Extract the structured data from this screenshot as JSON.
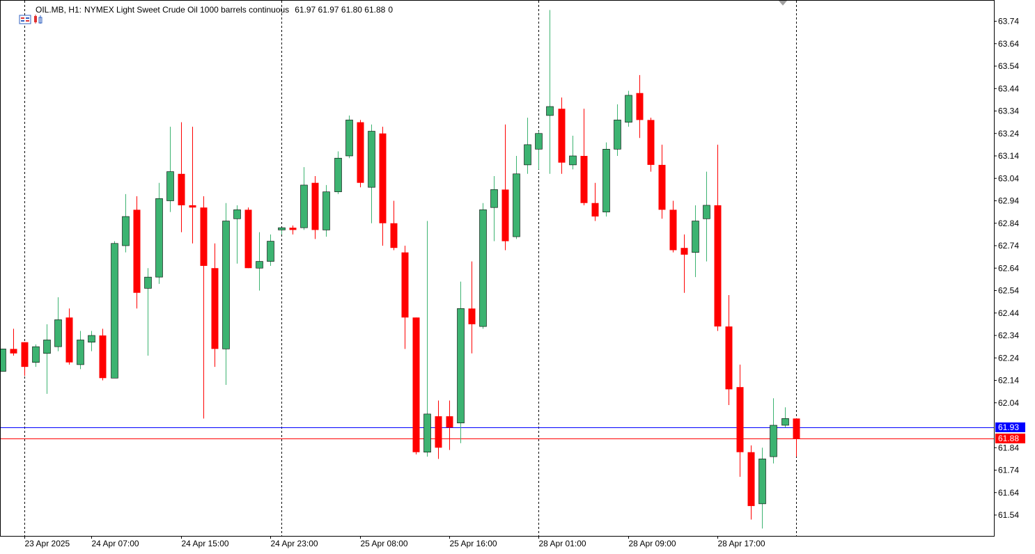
{
  "header": {
    "symbol": "OIL.MB, H1:",
    "description": "NYMEX Light Sweet Crude Oil 1000 barrels continuous",
    "ohlc": "61.97 61.97 61.80 61.88",
    "volume": "0"
  },
  "colors": {
    "bull": "#3cb371",
    "bear": "#ff0000",
    "bid_line": "#0000ff",
    "ask_line": "#ff0000",
    "grid_sep": "#000000",
    "axis": "#000000"
  },
  "price_labels": {
    "bid": "61.93",
    "last": "61.88"
  },
  "chart_data": {
    "type": "candlestick",
    "title": "OIL.MB, H1: NYMEX Light Sweet Crude Oil 1000 barrels continuous",
    "ylim": [
      61.44,
      63.8
    ],
    "y_ticks": [
      "63.74",
      "63.64",
      "63.54",
      "63.44",
      "63.34",
      "63.24",
      "63.14",
      "63.04",
      "62.94",
      "62.84",
      "62.74",
      "62.64",
      "62.54",
      "62.44",
      "62.34",
      "62.24",
      "62.14",
      "62.04",
      "61.84",
      "61.74",
      "61.64",
      "61.54"
    ],
    "x_labels": [
      "23 Apr 2025",
      "24 Apr 07:00",
      "24 Apr 15:00",
      "24 Apr 23:00",
      "25 Apr 08:00",
      "25 Apr 16:00",
      "28 Apr 01:00",
      "28 Apr 09:00",
      "28 Apr 17:00"
    ],
    "x_label_bars": [
      2,
      8,
      16,
      24,
      32,
      40,
      48,
      56,
      64
    ],
    "session_separators": [
      2,
      25,
      48,
      71
    ],
    "horizontal_lines": [
      61.93,
      61.88
    ],
    "candles": [
      {
        "o": 62.18,
        "h": 62.28,
        "l": 62.18,
        "c": 62.28
      },
      {
        "o": 62.28,
        "h": 62.37,
        "l": 62.25,
        "c": 62.26
      },
      {
        "o": 62.31,
        "h": 62.31,
        "l": 62.16,
        "c": 62.2
      },
      {
        "o": 62.22,
        "h": 62.3,
        "l": 62.2,
        "c": 62.29
      },
      {
        "o": 62.26,
        "h": 62.39,
        "l": 62.08,
        "c": 62.32
      },
      {
        "o": 62.29,
        "h": 62.51,
        "l": 62.27,
        "c": 62.41
      },
      {
        "o": 62.42,
        "h": 62.46,
        "l": 62.21,
        "c": 62.22
      },
      {
        "o": 62.21,
        "h": 62.36,
        "l": 62.19,
        "c": 62.32
      },
      {
        "o": 62.31,
        "h": 62.36,
        "l": 62.27,
        "c": 62.34
      },
      {
        "o": 62.34,
        "h": 62.37,
        "l": 62.14,
        "c": 62.15
      },
      {
        "o": 62.15,
        "h": 62.76,
        "l": 62.15,
        "c": 62.75
      },
      {
        "o": 62.74,
        "h": 62.97,
        "l": 62.71,
        "c": 62.87
      },
      {
        "o": 62.9,
        "h": 62.96,
        "l": 62.46,
        "c": 62.53
      },
      {
        "o": 62.55,
        "h": 62.64,
        "l": 62.25,
        "c": 62.6
      },
      {
        "o": 62.6,
        "h": 63.02,
        "l": 62.57,
        "c": 62.95
      },
      {
        "o": 62.94,
        "h": 63.27,
        "l": 62.89,
        "c": 63.07
      },
      {
        "o": 63.06,
        "h": 63.29,
        "l": 62.8,
        "c": 62.92
      },
      {
        "o": 62.92,
        "h": 63.27,
        "l": 62.75,
        "c": 62.91
      },
      {
        "o": 62.91,
        "h": 62.96,
        "l": 61.97,
        "c": 62.65
      },
      {
        "o": 62.64,
        "h": 62.75,
        "l": 62.2,
        "c": 62.28
      },
      {
        "o": 62.28,
        "h": 62.93,
        "l": 62.12,
        "c": 62.85
      },
      {
        "o": 62.86,
        "h": 62.92,
        "l": 62.66,
        "c": 62.9
      },
      {
        "o": 62.9,
        "h": 62.91,
        "l": 62.64,
        "c": 62.64
      },
      {
        "o": 62.64,
        "h": 62.8,
        "l": 62.54,
        "c": 62.67
      },
      {
        "o": 62.67,
        "h": 62.79,
        "l": 62.65,
        "c": 62.76
      },
      {
        "o": 62.81,
        "h": 62.81,
        "l": 62.79,
        "c": 62.82
      },
      {
        "o": 62.82,
        "h": 62.83,
        "l": 62.79,
        "c": 62.81
      },
      {
        "o": 62.82,
        "h": 63.09,
        "l": 62.81,
        "c": 63.01
      },
      {
        "o": 63.02,
        "h": 63.05,
        "l": 62.77,
        "c": 62.81
      },
      {
        "o": 62.81,
        "h": 63.01,
        "l": 62.78,
        "c": 62.98
      },
      {
        "o": 62.98,
        "h": 63.16,
        "l": 62.97,
        "c": 63.13
      },
      {
        "o": 63.14,
        "h": 63.32,
        "l": 63.13,
        "c": 63.3
      },
      {
        "o": 63.29,
        "h": 63.3,
        "l": 63.0,
        "c": 63.02
      },
      {
        "o": 63.0,
        "h": 63.28,
        "l": 62.84,
        "c": 63.25
      },
      {
        "o": 63.24,
        "h": 63.27,
        "l": 62.74,
        "c": 62.84
      },
      {
        "o": 62.84,
        "h": 62.94,
        "l": 62.72,
        "c": 62.73
      },
      {
        "o": 62.71,
        "h": 62.74,
        "l": 62.28,
        "c": 62.42
      },
      {
        "o": 62.42,
        "h": 62.42,
        "l": 61.81,
        "c": 61.82
      },
      {
        "o": 61.82,
        "h": 62.85,
        "l": 61.8,
        "c": 61.99
      },
      {
        "o": 61.98,
        "h": 62.05,
        "l": 61.79,
        "c": 61.84
      },
      {
        "o": 61.98,
        "h": 62.05,
        "l": 61.83,
        "c": 61.93
      },
      {
        "o": 61.95,
        "h": 62.58,
        "l": 61.86,
        "c": 62.46
      },
      {
        "o": 62.46,
        "h": 62.67,
        "l": 62.26,
        "c": 62.39
      },
      {
        "o": 62.38,
        "h": 62.93,
        "l": 62.37,
        "c": 62.9
      },
      {
        "o": 62.91,
        "h": 63.05,
        "l": 62.76,
        "c": 62.99
      },
      {
        "o": 62.99,
        "h": 63.28,
        "l": 62.72,
        "c": 62.76
      },
      {
        "o": 62.78,
        "h": 63.14,
        "l": 62.77,
        "c": 63.06
      },
      {
        "o": 63.1,
        "h": 63.31,
        "l": 63.06,
        "c": 63.19
      },
      {
        "o": 63.17,
        "h": 63.25,
        "l": 63.08,
        "c": 63.24
      },
      {
        "o": 63.32,
        "h": 63.79,
        "l": 63.06,
        "c": 63.36
      },
      {
        "o": 63.35,
        "h": 63.4,
        "l": 63.06,
        "c": 63.11
      },
      {
        "o": 63.1,
        "h": 63.23,
        "l": 63.08,
        "c": 63.14
      },
      {
        "o": 63.14,
        "h": 63.35,
        "l": 62.92,
        "c": 62.93
      },
      {
        "o": 62.93,
        "h": 63.02,
        "l": 62.85,
        "c": 62.87
      },
      {
        "o": 62.89,
        "h": 63.2,
        "l": 62.87,
        "c": 63.17
      },
      {
        "o": 63.17,
        "h": 63.37,
        "l": 63.14,
        "c": 63.3
      },
      {
        "o": 63.29,
        "h": 63.43,
        "l": 63.27,
        "c": 63.41
      },
      {
        "o": 63.42,
        "h": 63.5,
        "l": 63.22,
        "c": 63.3
      },
      {
        "o": 63.3,
        "h": 63.31,
        "l": 63.07,
        "c": 63.1
      },
      {
        "o": 63.1,
        "h": 63.19,
        "l": 62.86,
        "c": 62.9
      },
      {
        "o": 62.9,
        "h": 62.94,
        "l": 62.71,
        "c": 62.72
      },
      {
        "o": 62.73,
        "h": 62.79,
        "l": 62.53,
        "c": 62.7
      },
      {
        "o": 62.71,
        "h": 62.92,
        "l": 62.6,
        "c": 62.85
      },
      {
        "o": 62.86,
        "h": 63.07,
        "l": 62.67,
        "c": 62.92
      },
      {
        "o": 62.92,
        "h": 63.19,
        "l": 62.36,
        "c": 62.38
      },
      {
        "o": 62.38,
        "h": 62.52,
        "l": 62.03,
        "c": 62.1
      },
      {
        "o": 62.11,
        "h": 62.21,
        "l": 61.71,
        "c": 61.82
      },
      {
        "o": 61.82,
        "h": 61.85,
        "l": 61.52,
        "c": 61.58
      },
      {
        "o": 61.59,
        "h": 61.84,
        "l": 61.48,
        "c": 61.79
      },
      {
        "o": 61.8,
        "h": 62.06,
        "l": 61.77,
        "c": 61.94
      },
      {
        "o": 61.94,
        "h": 62.02,
        "l": 61.93,
        "c": 61.97
      },
      {
        "o": 61.97,
        "h": 61.97,
        "l": 61.8,
        "c": 61.88
      }
    ]
  }
}
